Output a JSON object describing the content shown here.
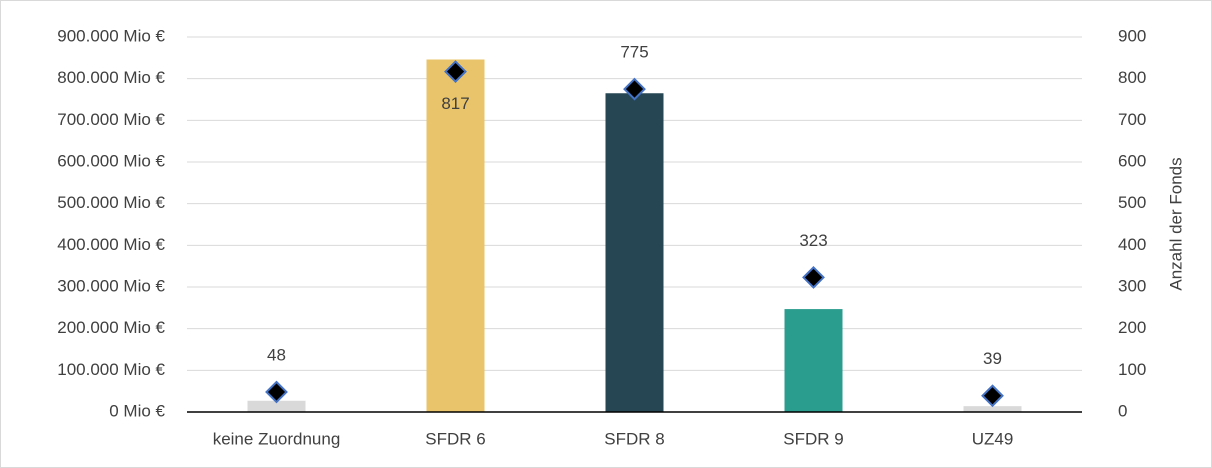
{
  "chart_data": {
    "type": "bar",
    "categories": [
      "keine Zuordnung",
      "SFDR 6",
      "SFDR 8",
      "SFDR 9",
      "UZ49"
    ],
    "series": [
      {
        "type": "bar",
        "colors": [
          "#d9d9d9",
          "#e9c46a",
          "#264653",
          "#2a9d8f",
          "#d9d9d9"
        ],
        "values": [
          27000,
          846000,
          765000,
          247000,
          14000
        ]
      },
      {
        "type": "scatter",
        "axis": "y2",
        "color": "#000000",
        "edge_color": "#4472c4",
        "marker": "diamond",
        "values": [
          48,
          817,
          775,
          323,
          39
        ]
      }
    ],
    "ylim": [
      0,
      900000
    ],
    "yticks": [
      {
        "value": 0,
        "label": "0 Mio €"
      },
      {
        "value": 100000,
        "label": "100.000 Mio €"
      },
      {
        "value": 200000,
        "label": "200.000 Mio €"
      },
      {
        "value": 300000,
        "label": "300.000 Mio €"
      },
      {
        "value": 400000,
        "label": "400.000 Mio €"
      },
      {
        "value": 500000,
        "label": "500.000 Mio €"
      },
      {
        "value": 600000,
        "label": "600.000 Mio €"
      },
      {
        "value": 700000,
        "label": "700.000 Mio €"
      },
      {
        "value": 800000,
        "label": "800.000 Mio €"
      },
      {
        "value": 900000,
        "label": "900.000 Mio €"
      }
    ],
    "y2label": "Anzahl der Fonds",
    "y2lim": [
      0,
      900
    ],
    "y2ticks": [
      0,
      100,
      200,
      300,
      400,
      500,
      600,
      700,
      800,
      900
    ],
    "grid": true
  }
}
